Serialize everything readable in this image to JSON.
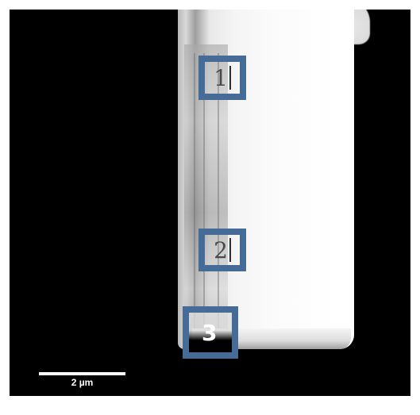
{
  "image": {
    "type": "microscopy-cross-section",
    "colors": {
      "background": "#000000",
      "sample": "#ffffff",
      "marker_border": "#466b96",
      "scale_bar": "#ffffff"
    }
  },
  "markers": [
    {
      "label": "1"
    },
    {
      "label": "2"
    },
    {
      "label": "3"
    }
  ],
  "scale_bar": {
    "label": "2 µm"
  }
}
